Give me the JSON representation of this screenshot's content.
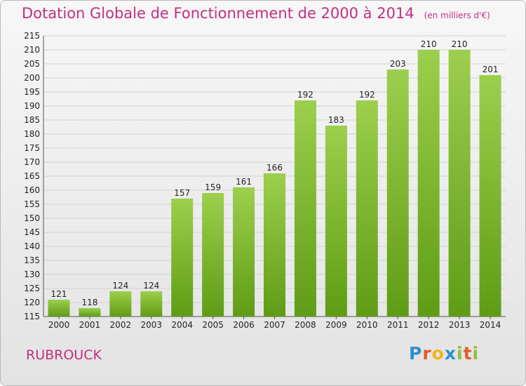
{
  "title": "Dotation Globale de Fonctionnement de 2000 à 2014",
  "unit_label": "(en milliers d'€)",
  "commune": "RUBROUCK",
  "logo": {
    "letters": [
      "P",
      "r",
      "o",
      "x",
      "i",
      "t",
      "i"
    ],
    "colors": [
      "#2f8ecf",
      "#e35b2a",
      "#f2b51c",
      "#2f8ecf",
      "#8bc13f",
      "#e35b2a",
      "#8bc13f"
    ]
  },
  "chart_data": {
    "type": "bar",
    "title": "Dotation Globale de Fonctionnement de 2000 à 2014",
    "xlabel": "",
    "ylabel": "",
    "categories": [
      "2000",
      "2001",
      "2002",
      "2003",
      "2004",
      "2005",
      "2006",
      "2007",
      "2008",
      "2009",
      "2010",
      "2011",
      "2012",
      "2013",
      "2014"
    ],
    "values": [
      121,
      118,
      124,
      124,
      157,
      159,
      161,
      166,
      192,
      183,
      192,
      203,
      210,
      210,
      201
    ],
    "ylim": [
      115,
      215
    ],
    "ytick_step": 5,
    "grid": true,
    "bar_color_top": "#9ccf4d",
    "bar_color_bottom": "#5f9c15",
    "legend": "none"
  }
}
